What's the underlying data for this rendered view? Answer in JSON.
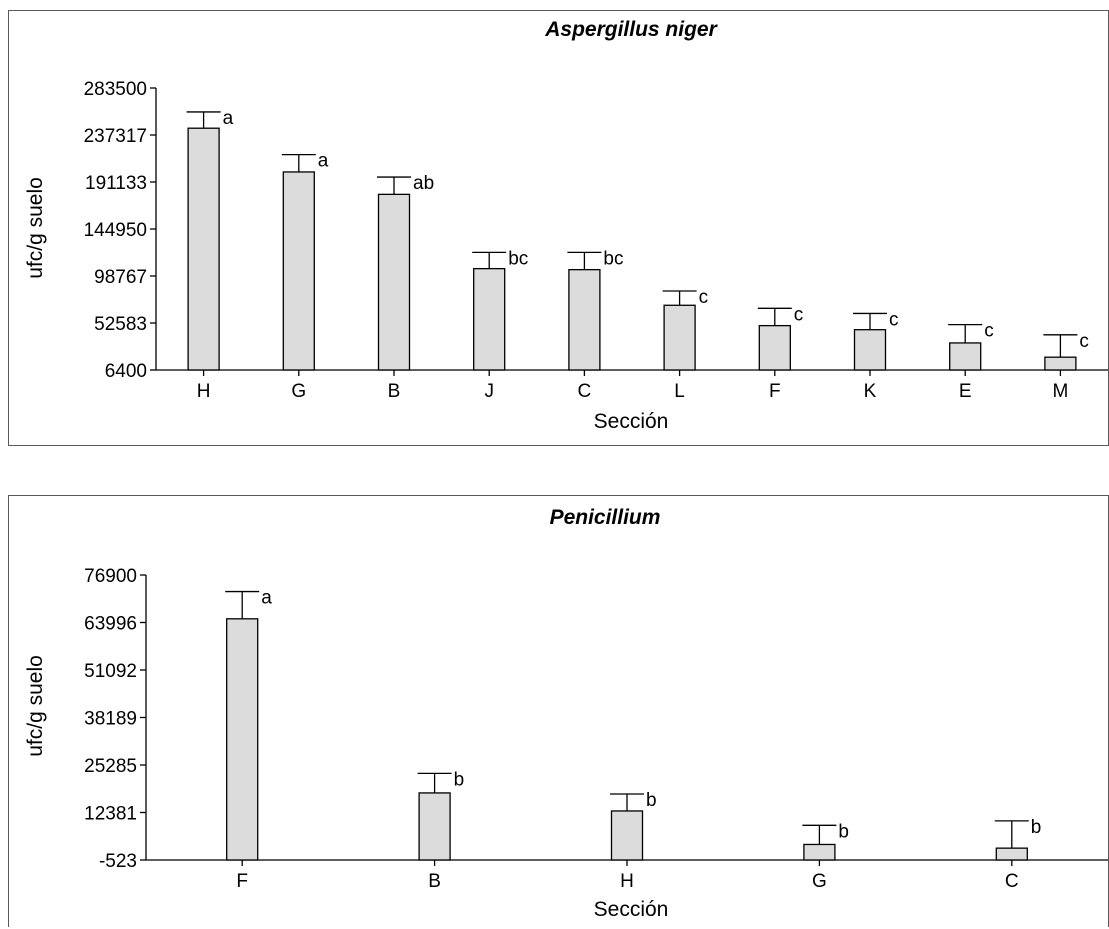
{
  "chart_data": [
    {
      "type": "bar",
      "title": "Aspergillus niger",
      "xlabel": "Sección",
      "ylabel": "ufc/g suelo",
      "ylim": [
        6400,
        283500
      ],
      "yticks": [
        "283500",
        "237317",
        "191133",
        "144950",
        "98767",
        "52583",
        "6400"
      ],
      "categories": [
        "H",
        "G",
        "B",
        "J",
        "C",
        "L",
        "F",
        "K",
        "E",
        "M"
      ],
      "values": [
        244000,
        201000,
        179000,
        106000,
        105000,
        70000,
        50000,
        46000,
        33000,
        19000
      ],
      "error_upper": [
        260000,
        218000,
        196000,
        122000,
        122000,
        84000,
        67000,
        62000,
        51000,
        41000
      ],
      "significance": [
        "a",
        "a",
        "ab",
        "bc",
        "bc",
        "c",
        "c",
        "c",
        "c",
        "c"
      ],
      "grid": false,
      "legend": "none"
    },
    {
      "type": "bar",
      "title": "Penicillium",
      "xlabel": "Sección",
      "ylabel": "ufc/g suelo",
      "ylim": [
        -523,
        76900
      ],
      "yticks": [
        "76900",
        "63996",
        "51092",
        "38189",
        "25285",
        "12381",
        "-523"
      ],
      "categories": [
        "F",
        "B",
        "H",
        "G",
        "C"
      ],
      "values": [
        65000,
        17700,
        12800,
        3700,
        2700
      ],
      "error_upper": [
        72400,
        23000,
        17400,
        8900,
        10100
      ],
      "significance": [
        "a",
        "b",
        "b",
        "b",
        "b"
      ],
      "grid": false,
      "legend": "none"
    }
  ]
}
